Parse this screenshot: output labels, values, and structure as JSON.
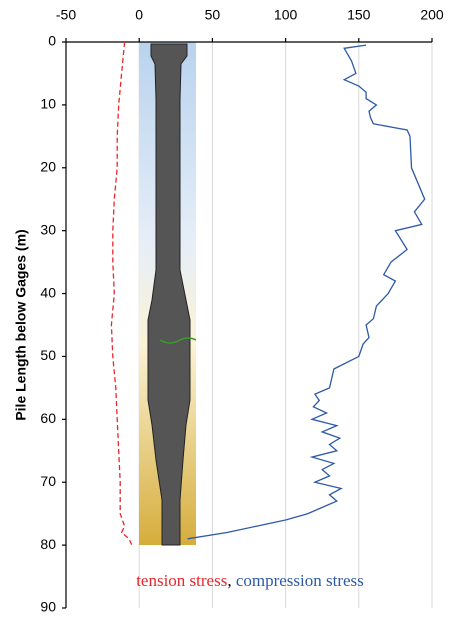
{
  "chart_data": {
    "type": "line",
    "ylabel": "Pile Length below Gages (m)",
    "xlim": [
      -50,
      200
    ],
    "xticks": [
      -50,
      0,
      50,
      100,
      150,
      200
    ],
    "ylim": [
      0,
      90
    ],
    "yticks": [
      0,
      10,
      20,
      30,
      40,
      50,
      60,
      70,
      80,
      90
    ],
    "y_inverted": true,
    "x_axis_position": "top",
    "grid": true,
    "legend_separator": ",",
    "series": [
      {
        "name": "tension stress",
        "color": "#e8262b",
        "dashed": true,
        "x": [
          -10,
          -12,
          -14,
          -15,
          -15,
          -17,
          -18,
          -18,
          -17,
          -19,
          -18,
          -16,
          -15,
          -14,
          -13,
          -13,
          -10,
          -12,
          -7,
          -5
        ],
        "y": [
          0,
          5,
          10,
          15,
          20,
          25,
          30,
          35,
          40,
          45,
          50,
          55,
          60,
          65,
          70,
          75,
          77,
          78,
          79,
          80
        ]
      },
      {
        "name": "compression stress",
        "color": "#2e5aa8",
        "dashed": false,
        "x": [
          155,
          140,
          145,
          148,
          140,
          150,
          155,
          155,
          162,
          157,
          158,
          160,
          183,
          185,
          186,
          195,
          188,
          193,
          175,
          183,
          172,
          167,
          175,
          170,
          162,
          160,
          155,
          157,
          153,
          150,
          133,
          130,
          120,
          123,
          119,
          128,
          118,
          135,
          125,
          137,
          130,
          135,
          118,
          133,
          125,
          130,
          120,
          138,
          130,
          135,
          125,
          115,
          100,
          80,
          60,
          33
        ],
        "y": [
          0.5,
          1,
          3,
          5,
          6,
          7,
          8,
          9,
          10,
          11,
          12,
          13,
          14,
          15,
          20,
          25,
          27,
          29,
          30,
          33,
          35,
          37,
          38,
          40,
          42,
          44,
          45,
          47,
          48,
          50,
          52,
          55,
          56,
          57,
          58,
          59,
          60,
          61,
          62,
          63,
          64,
          65,
          66,
          67,
          68,
          69,
          70,
          71,
          72,
          73,
          74,
          75,
          76,
          77,
          78,
          79
        ]
      }
    ]
  }
}
